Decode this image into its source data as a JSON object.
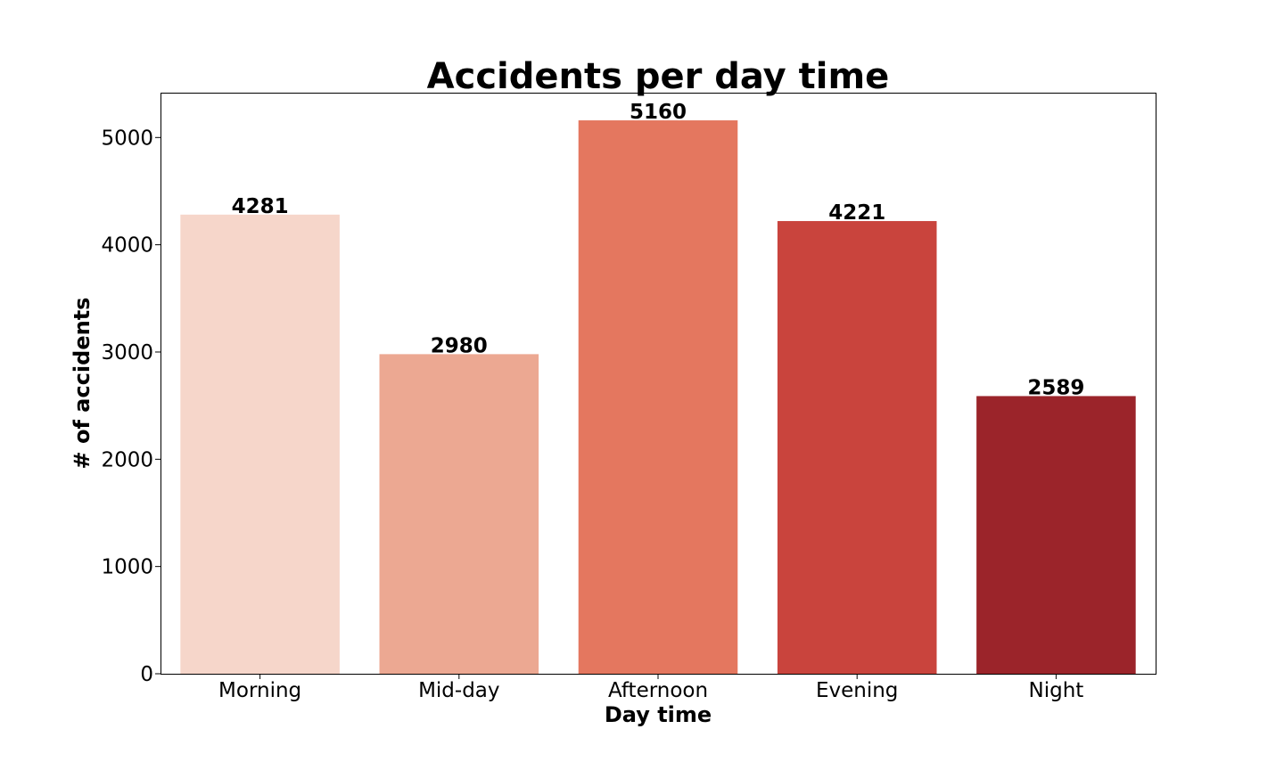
{
  "chart_data": {
    "type": "bar",
    "title": "Accidents per day time",
    "xlabel": "Day time",
    "ylabel": "# of accidents",
    "categories": [
      "Morning",
      "Mid-day",
      "Afternoon",
      "Evening",
      "Night"
    ],
    "values": [
      4281,
      2980,
      5160,
      4221,
      2589
    ],
    "data_labels": [
      "4281",
      "2980",
      "5160",
      "4221",
      "2589"
    ],
    "ylim": [
      0,
      5418
    ],
    "yticks": [
      0,
      1000,
      2000,
      3000,
      4000,
      5000
    ],
    "ytick_labels": [
      "0",
      "1000",
      "2000",
      "3000",
      "4000",
      "5000"
    ],
    "colors": [
      "#f6d6ca",
      "#eca892",
      "#e4775f",
      "#c9443d",
      "#9b242a"
    ],
    "grid": false,
    "legend": "none"
  }
}
